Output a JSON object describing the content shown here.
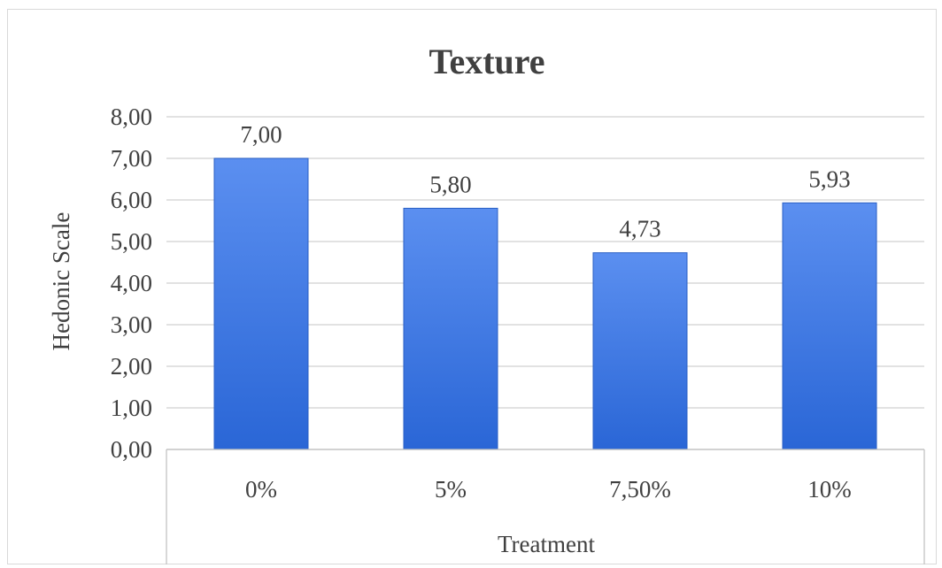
{
  "chart_data": {
    "type": "bar",
    "title": "Texture",
    "xlabel": "Treatment",
    "ylabel": "Hedonic Scale",
    "categories": [
      "0%",
      "5%",
      "7,50%",
      "10%"
    ],
    "values": [
      7.0,
      5.8,
      4.73,
      5.93
    ],
    "value_labels": [
      "7,00",
      "5,80",
      "4,73",
      "5,93"
    ],
    "yticks": [
      "0,00",
      "1,00",
      "2,00",
      "3,00",
      "4,00",
      "5,00",
      "6,00",
      "7,00",
      "8,00"
    ],
    "ylim": [
      0,
      8
    ],
    "grid": true,
    "legend": "none",
    "colors": {
      "bar_top": "#5b8ff0",
      "bar_bottom": "#2a66d6",
      "grid": "#d0d0d0",
      "text": "#404040"
    }
  }
}
